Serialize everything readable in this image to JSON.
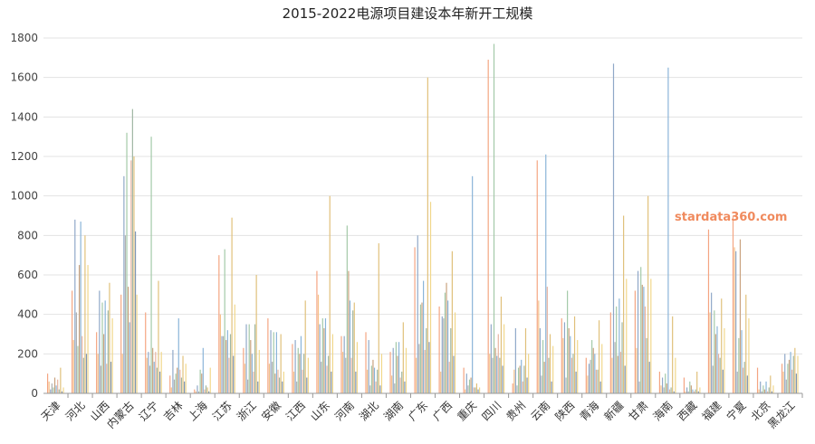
{
  "watermark": "stardata360.com",
  "chart_data": {
    "type": "bar",
    "title": "2015-2022电源项目建设本年新开工规模",
    "xlabel": "",
    "ylabel": "",
    "ylim": [
      0,
      1800
    ],
    "yticks": [
      0,
      200,
      400,
      600,
      800,
      1000,
      1200,
      1400,
      1600,
      1800
    ],
    "grid": true,
    "categories": [
      "天津",
      "河北",
      "山西",
      "内蒙古",
      "辽宁",
      "吉林",
      "上海",
      "江苏",
      "浙江",
      "安徽",
      "江西",
      "山东",
      "河南",
      "湖北",
      "湖南",
      "广东",
      "广西",
      "重庆",
      "四川",
      "贵州",
      "云南",
      "陕西",
      "青海",
      "新疆",
      "甘肃",
      "海南",
      "西藏",
      "福建",
      "宁夏",
      "北京",
      "黑龙江"
    ],
    "bar_colors": [
      "#f4a582",
      "#f6c28b",
      "#8fa8c8",
      "#b0b0b0",
      "#a3c9a8",
      "#c9a27e",
      "#8ab4d8",
      "#e8b4a0",
      "#9fb7a3",
      "#e0c07a",
      "#7e95b5",
      "#f1d78a"
    ],
    "values": [
      [
        100,
        60,
        20,
        50,
        30,
        80,
        40,
        70,
        20,
        130,
        10,
        30
      ],
      [
        520,
        270,
        880,
        410,
        240,
        650,
        870,
        290,
        180,
        800,
        200,
        650
      ],
      [
        310,
        200,
        520,
        140,
        460,
        300,
        470,
        150,
        420,
        560,
        160,
        380
      ],
      [
        500,
        200,
        1100,
        800,
        1320,
        540,
        360,
        1180,
        1440,
        1200,
        820,
        500
      ],
      [
        410,
        180,
        210,
        140,
        1300,
        230,
        160,
        210,
        130,
        570,
        110,
        210
      ],
      [
        90,
        30,
        220,
        70,
        100,
        130,
        380,
        120,
        80,
        190,
        60,
        150
      ],
      [
        20,
        10,
        40,
        10,
        120,
        100,
        230,
        20,
        40,
        30,
        10,
        130
      ],
      [
        700,
        400,
        290,
        290,
        730,
        270,
        320,
        180,
        300,
        890,
        190,
        450
      ],
      [
        230,
        150,
        350,
        70,
        350,
        270,
        200,
        110,
        350,
        600,
        60,
        220
      ],
      [
        380,
        150,
        320,
        160,
        310,
        100,
        310,
        120,
        80,
        300,
        60,
        110
      ],
      [
        250,
        110,
        270,
        60,
        230,
        200,
        290,
        120,
        200,
        470,
        80,
        180
      ],
      [
        620,
        500,
        350,
        160,
        380,
        330,
        380,
        140,
        190,
        1000,
        110,
        300
      ],
      [
        290,
        210,
        290,
        180,
        850,
        620,
        470,
        180,
        420,
        460,
        110,
        260
      ],
      [
        310,
        120,
        270,
        40,
        140,
        170,
        130,
        60,
        120,
        760,
        40,
        200
      ],
      [
        210,
        90,
        230,
        50,
        260,
        190,
        260,
        80,
        110,
        360,
        60,
        230
      ],
      [
        740,
        180,
        800,
        250,
        450,
        460,
        570,
        220,
        330,
        1600,
        260,
        970
      ],
      [
        440,
        110,
        390,
        380,
        510,
        560,
        470,
        160,
        330,
        720,
        190,
        410
      ],
      [
        130,
        20,
        100,
        40,
        70,
        80,
        1100,
        30,
        30,
        50,
        20,
        30
      ],
      [
        1690,
        200,
        350,
        180,
        1770,
        230,
        190,
        300,
        180,
        490,
        140,
        350
      ],
      [
        50,
        120,
        330,
        40,
        130,
        140,
        170,
        60,
        140,
        330,
        80,
        200
      ],
      [
        1180,
        470,
        330,
        90,
        270,
        160,
        1210,
        540,
        180,
        300,
        60,
        240
      ],
      [
        380,
        280,
        360,
        80,
        520,
        330,
        290,
        180,
        200,
        390,
        110,
        270
      ],
      [
        180,
        90,
        150,
        170,
        270,
        230,
        200,
        120,
        120,
        370,
        60,
        250
      ],
      [
        410,
        180,
        1670,
        260,
        440,
        190,
        480,
        210,
        360,
        900,
        140,
        580
      ],
      [
        520,
        230,
        620,
        60,
        640,
        550,
        540,
        440,
        280,
        1000,
        160,
        580
      ],
      [
        110,
        40,
        80,
        30,
        100,
        50,
        1650,
        20,
        30,
        390,
        10,
        180
      ],
      [
        80,
        10,
        30,
        10,
        60,
        40,
        20,
        10,
        20,
        110,
        10,
        30
      ],
      [
        830,
        410,
        510,
        140,
        420,
        300,
        340,
        200,
        180,
        480,
        120,
        330
      ],
      [
        900,
        740,
        720,
        110,
        280,
        780,
        320,
        130,
        160,
        500,
        90,
        380
      ],
      [
        130,
        20,
        60,
        10,
        40,
        20,
        60,
        10,
        30,
        90,
        10,
        40
      ],
      [
        150,
        110,
        200,
        70,
        150,
        170,
        210,
        120,
        190,
        230,
        100,
        190
      ]
    ]
  }
}
